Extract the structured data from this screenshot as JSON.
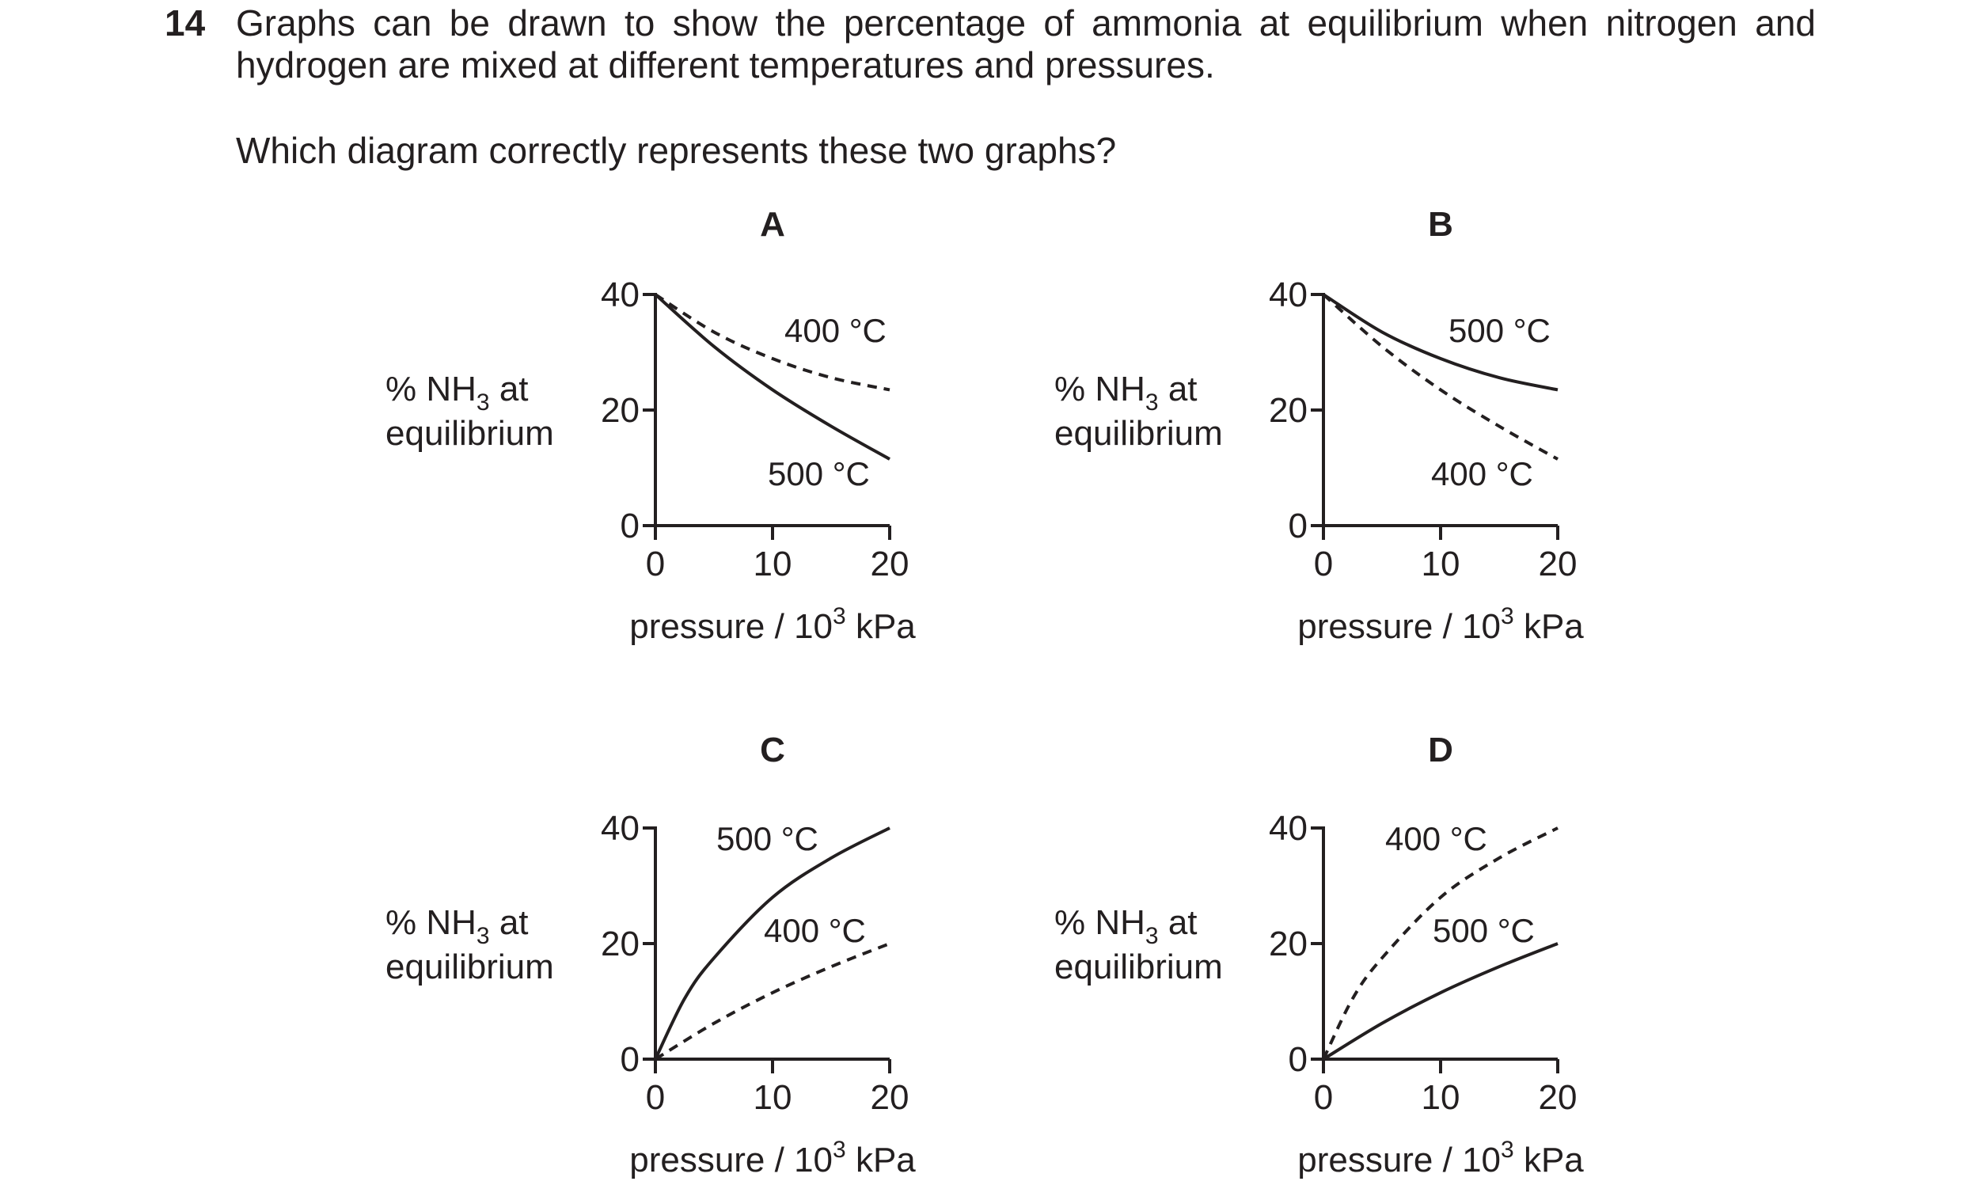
{
  "question": {
    "number": "14",
    "line1": "Graphs can be drawn to show the percentage of ammonia at equilibrium when nitrogen and",
    "line2": "hydrogen are mixed at different temperatures and pressures.",
    "ask": "Which diagram correctly represents these two graphs?"
  },
  "common": {
    "ylabel_prefix": "% NH",
    "ylabel_sub": "3",
    "ylabel_suffix": " at",
    "ylabel_line2": "equilibrium",
    "xlabel_prefix": "pressure / 10",
    "xlabel_sup": "3",
    "xlabel_suffix": " kPa",
    "x_ticks": [
      "0",
      "10",
      "20"
    ],
    "y_ticks": [
      "0",
      "20",
      "40"
    ]
  },
  "chart_data": [
    {
      "option": "A",
      "type": "line",
      "xlim": [
        0,
        20
      ],
      "ylim": [
        0,
        40
      ],
      "series": [
        {
          "name": "400 °C",
          "style": "dashed",
          "x": [
            0,
            5,
            10,
            15,
            20
          ],
          "y": [
            40,
            33.5,
            28.9,
            25.6,
            23.5
          ]
        },
        {
          "name": "500 °C",
          "style": "solid",
          "x": [
            0,
            5,
            10,
            15,
            20
          ],
          "y": [
            40,
            31,
            23.5,
            17.2,
            11.5
          ]
        }
      ]
    },
    {
      "option": "B",
      "type": "line",
      "xlim": [
        0,
        20
      ],
      "ylim": [
        0,
        40
      ],
      "series": [
        {
          "name": "500 °C",
          "style": "solid",
          "x": [
            0,
            5,
            10,
            15,
            20
          ],
          "y": [
            40,
            33.5,
            28.9,
            25.6,
            23.5
          ]
        },
        {
          "name": "400 °C",
          "style": "dashed",
          "x": [
            0,
            5,
            10,
            15,
            20
          ],
          "y": [
            40,
            31,
            23.5,
            17.2,
            11.5
          ]
        }
      ]
    },
    {
      "option": "C",
      "type": "line",
      "xlim": [
        0,
        20
      ],
      "ylim": [
        0,
        40
      ],
      "series": [
        {
          "name": "500 °C",
          "style": "solid",
          "x": [
            0,
            2.5,
            5,
            10,
            15,
            20
          ],
          "y": [
            0,
            10.5,
            17.5,
            28,
            34.8,
            40
          ]
        },
        {
          "name": "400 °C",
          "style": "dashed",
          "x": [
            0,
            5,
            10,
            15,
            20
          ],
          "y": [
            0,
            6.2,
            11.5,
            16,
            20
          ]
        }
      ]
    },
    {
      "option": "D",
      "type": "line",
      "xlim": [
        0,
        20
      ],
      "ylim": [
        0,
        40
      ],
      "series": [
        {
          "name": "400 °C",
          "style": "dashed",
          "x": [
            0,
            2.5,
            5,
            10,
            15,
            20
          ],
          "y": [
            0,
            10.5,
            17.5,
            28,
            34.8,
            40
          ]
        },
        {
          "name": "500 °C",
          "style": "solid",
          "x": [
            0,
            5,
            10,
            15,
            20
          ],
          "y": [
            0,
            6.2,
            11.5,
            16,
            20
          ]
        }
      ]
    }
  ]
}
